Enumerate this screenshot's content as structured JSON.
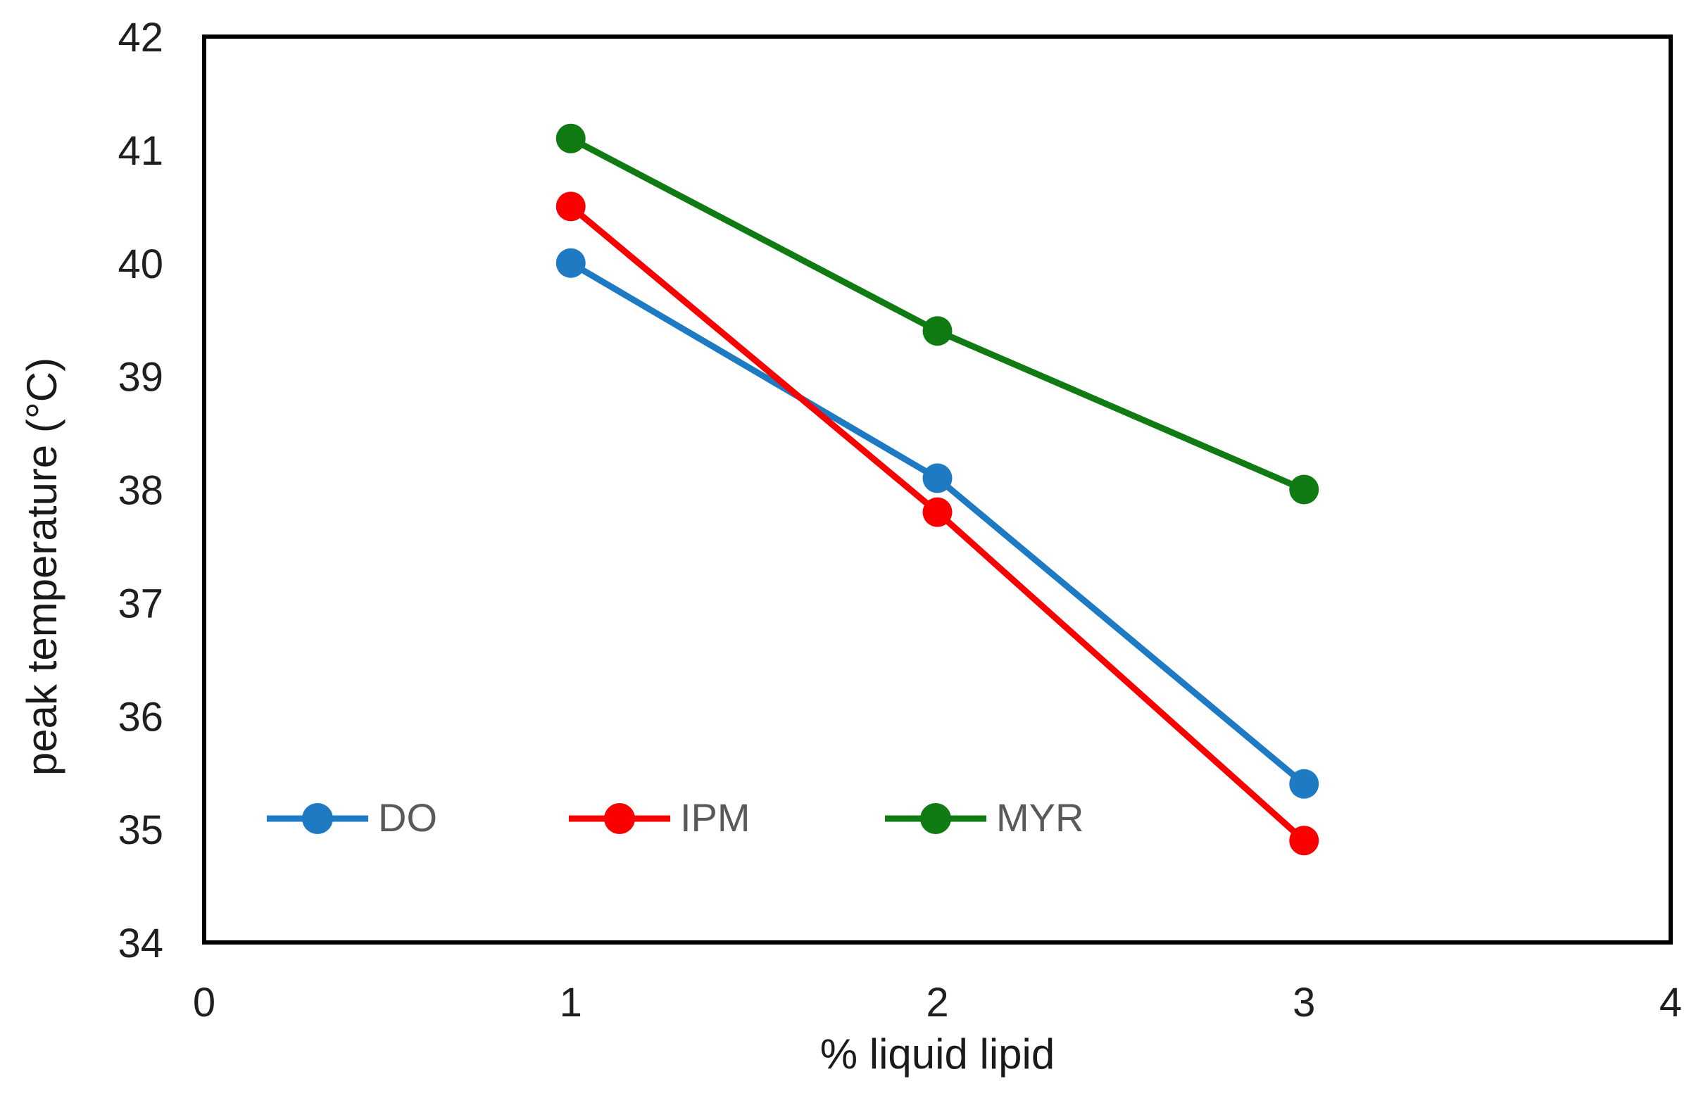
{
  "chart_data": {
    "type": "line",
    "title": "",
    "xlabel": "% liquid lipid",
    "ylabel": "peak temperature (°C)",
    "x": [
      1,
      2,
      3
    ],
    "series": [
      {
        "name": "DO",
        "color": "#1F7AC4",
        "values": [
          40.0,
          38.1,
          35.4
        ]
      },
      {
        "name": "IPM",
        "color": "#FB0000",
        "values": [
          40.5,
          37.8,
          34.9
        ]
      },
      {
        "name": "MYR",
        "color": "#0F7B12",
        "values": [
          41.1,
          39.4,
          38.0
        ]
      }
    ],
    "xlim": [
      0,
      4
    ],
    "ylim": [
      34,
      42
    ],
    "x_ticks": [
      0,
      1,
      2,
      3,
      4
    ],
    "y_ticks": [
      34,
      35,
      36,
      37,
      38,
      39,
      40,
      41,
      42
    ],
    "grid": false,
    "legend_position": "inside-bottom-left",
    "colors": {
      "axis_border": "#000000",
      "tick_text": "#1f1f1f",
      "axis_title_text": "#1a1a1a",
      "legend_text": "#595959",
      "background": "#ffffff"
    }
  }
}
